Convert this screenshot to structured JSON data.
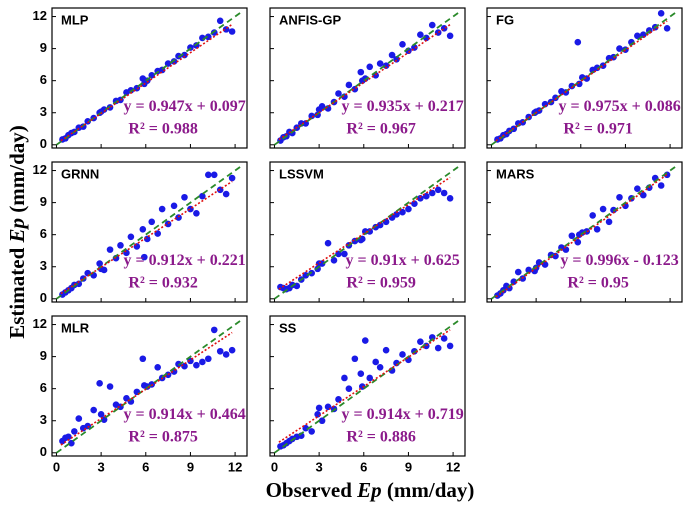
{
  "y_label": [
    "Estimated ",
    "Ep",
    " (mm/day)"
  ],
  "x_label": [
    "Observed ",
    "Ep",
    " (mm/day)"
  ],
  "chart_data": [
    {
      "type": "scatter",
      "title": "MLP",
      "equation": "y = 0.947x + 0.097",
      "r2": "R² = 0.988",
      "x": [
        0.4,
        0.6,
        0.8,
        1.0,
        1.2,
        1.5,
        1.8,
        2.1,
        2.5,
        2.9,
        3.2,
        3.6,
        4.0,
        4.3,
        4.7,
        5.0,
        5.4,
        5.8,
        6.1,
        6.4,
        6.8,
        7.1,
        7.5,
        7.9,
        8.2,
        8.6,
        9.0,
        9.4,
        9.8,
        10.2,
        10.6,
        11.0,
        11.4,
        11.8,
        5.9,
        3.0
      ],
      "values": [
        0.5,
        0.6,
        0.9,
        1.1,
        1.2,
        1.6,
        1.7,
        2.2,
        2.5,
        3.0,
        3.3,
        3.5,
        4.1,
        4.2,
        4.9,
        5.1,
        5.3,
        6.2,
        6.0,
        6.5,
        6.9,
        7.0,
        7.6,
        7.8,
        8.3,
        8.4,
        9.1,
        9.3,
        10.0,
        10.1,
        10.5,
        11.6,
        10.8,
        10.6,
        5.7,
        3.1
      ],
      "fit": {
        "x": [
          0.3,
          11.8
        ],
        "values": [
          0.381,
          11.27
        ]
      },
      "diagonal": {
        "x": [
          0,
          12.5
        ],
        "values": [
          0,
          12.5
        ]
      },
      "xlim": [
        -0.3,
        12.8
      ],
      "ylim": [
        -0.3,
        12.8
      ],
      "xticks": [
        0,
        3,
        6,
        9,
        12
      ],
      "yticks": [
        0,
        3,
        6,
        9,
        12
      ],
      "show_xtick_labels": false,
      "show_ytick_labels": true,
      "color": "#1a1ae6",
      "fit_color": "#e01010",
      "diagonal_color": "#2a8a2a",
      "label_color": "#8b1a8b"
    },
    {
      "type": "scatter",
      "title": "ANFIS-GP",
      "equation": "y = 0.935x + 0.217",
      "r2": "R² = 0.967",
      "x": [
        0.4,
        0.6,
        0.8,
        1.0,
        1.2,
        1.5,
        1.8,
        2.1,
        2.5,
        2.9,
        3.2,
        3.6,
        4.0,
        4.3,
        4.7,
        5.0,
        5.4,
        5.8,
        6.1,
        6.4,
        6.8,
        7.1,
        7.5,
        7.9,
        8.2,
        8.6,
        9.0,
        9.4,
        9.8,
        10.2,
        10.6,
        11.0,
        11.4,
        11.8,
        5.9,
        3.0
      ],
      "values": [
        0.4,
        0.7,
        0.8,
        1.2,
        1.1,
        1.6,
        2.0,
        2.0,
        2.7,
        2.8,
        3.6,
        3.4,
        4.0,
        4.8,
        4.5,
        5.6,
        5.2,
        6.8,
        6.2,
        7.3,
        6.5,
        7.6,
        7.4,
        8.4,
        8.0,
        9.4,
        8.8,
        9.1,
        10.3,
        10.0,
        11.2,
        10.5,
        10.9,
        10.2,
        6.0,
        3.3
      ],
      "fit": {
        "x": [
          0.3,
          11.8
        ],
        "values": [
          0.497,
          11.25
        ]
      },
      "diagonal": {
        "x": [
          0,
          12.5
        ],
        "values": [
          0,
          12.5
        ]
      },
      "xlim": [
        -0.3,
        12.8
      ],
      "ylim": [
        -0.3,
        12.8
      ],
      "xticks": [
        0,
        3,
        6,
        9,
        12
      ],
      "yticks": [
        0,
        3,
        6,
        9,
        12
      ],
      "show_xtick_labels": false,
      "show_ytick_labels": false,
      "color": "#1a1ae6",
      "fit_color": "#e01010",
      "diagonal_color": "#2a8a2a",
      "label_color": "#8b1a8b"
    },
    {
      "type": "scatter",
      "title": "FG",
      "equation": "y = 0.975x + 0.086",
      "r2": "R² = 0.971",
      "x": [
        0.4,
        0.6,
        0.8,
        1.0,
        1.2,
        1.5,
        1.8,
        2.1,
        2.5,
        2.9,
        3.2,
        3.6,
        4.0,
        4.3,
        4.7,
        5.0,
        5.4,
        5.8,
        6.1,
        6.4,
        6.8,
        7.1,
        7.5,
        7.9,
        8.2,
        8.6,
        9.0,
        9.4,
        9.8,
        10.2,
        10.6,
        11.0,
        11.4,
        11.8,
        5.9,
        3.0
      ],
      "values": [
        0.5,
        0.6,
        0.9,
        1.0,
        1.3,
        1.5,
        2.0,
        2.1,
        2.6,
        3.0,
        3.2,
        3.8,
        4.0,
        4.4,
        5.0,
        4.9,
        5.5,
        9.6,
        6.3,
        6.2,
        7.0,
        7.2,
        7.4,
        8.1,
        8.2,
        9.0,
        8.9,
        9.6,
        10.2,
        10.3,
        10.7,
        11.0,
        12.3,
        10.9,
        5.7,
        3.1
      ],
      "fit": {
        "x": [
          0.3,
          11.8
        ],
        "values": [
          0.379,
          11.59
        ]
      },
      "diagonal": {
        "x": [
          0,
          12.5
        ],
        "values": [
          0,
          12.5
        ]
      },
      "xlim": [
        -0.3,
        12.8
      ],
      "ylim": [
        -0.3,
        12.8
      ],
      "xticks": [
        0,
        3,
        6,
        9,
        12
      ],
      "yticks": [
        0,
        3,
        6,
        9,
        12
      ],
      "show_xtick_labels": false,
      "show_ytick_labels": false,
      "color": "#1a1ae6",
      "fit_color": "#e01010",
      "diagonal_color": "#2a8a2a",
      "label_color": "#8b1a8b"
    },
    {
      "type": "scatter",
      "title": "GRNN",
      "equation": "y = 0.912x + 0.221",
      "r2": "R² = 0.932",
      "x": [
        0.4,
        0.6,
        0.8,
        1.0,
        1.2,
        1.5,
        1.8,
        2.1,
        2.5,
        2.9,
        3.2,
        3.6,
        4.0,
        4.3,
        4.7,
        5.0,
        5.4,
        5.8,
        6.1,
        6.4,
        6.8,
        7.1,
        7.5,
        7.9,
        8.2,
        8.6,
        9.0,
        9.4,
        9.8,
        10.2,
        10.6,
        11.0,
        11.4,
        11.8,
        5.9,
        3.0
      ],
      "values": [
        0.4,
        0.6,
        0.8,
        1.0,
        1.3,
        1.4,
        1.9,
        2.4,
        2.2,
        3.3,
        2.7,
        4.6,
        3.8,
        5.0,
        4.3,
        5.8,
        4.9,
        6.5,
        5.6,
        7.2,
        6.1,
        8.4,
        7.0,
        8.7,
        7.6,
        9.5,
        8.4,
        8.0,
        9.6,
        11.6,
        11.6,
        10.2,
        9.8,
        11.3,
        3.9,
        2.8
      ],
      "fit": {
        "x": [
          0.3,
          11.8
        ],
        "values": [
          0.495,
          10.98
        ]
      },
      "diagonal": {
        "x": [
          0,
          12.5
        ],
        "values": [
          0,
          12.5
        ]
      },
      "xlim": [
        -0.3,
        12.8
      ],
      "ylim": [
        -0.3,
        12.8
      ],
      "xticks": [
        0,
        3,
        6,
        9,
        12
      ],
      "yticks": [
        0,
        3,
        6,
        9,
        12
      ],
      "show_xtick_labels": false,
      "show_ytick_labels": true,
      "color": "#1a1ae6",
      "fit_color": "#e01010",
      "diagonal_color": "#2a8a2a",
      "label_color": "#8b1a8b"
    },
    {
      "type": "scatter",
      "title": "LSSVM",
      "equation": "y = 0.91x + 0.625",
      "r2": "R² = 0.959",
      "x": [
        0.4,
        0.6,
        0.8,
        1.0,
        1.2,
        1.5,
        1.8,
        2.1,
        2.5,
        2.9,
        3.2,
        3.6,
        4.0,
        4.3,
        4.7,
        5.0,
        5.4,
        5.8,
        6.1,
        6.4,
        6.8,
        7.1,
        7.5,
        7.9,
        8.2,
        8.6,
        9.0,
        9.4,
        9.8,
        10.2,
        10.6,
        11.0,
        11.4,
        11.8,
        5.9,
        3.0
      ],
      "values": [
        1.1,
        1.0,
        0.9,
        1.0,
        1.3,
        1.2,
        1.8,
        2.2,
        2.4,
        2.8,
        3.3,
        5.2,
        3.6,
        4.2,
        4.2,
        5.0,
        5.4,
        5.5,
        6.3,
        6.3,
        6.7,
        6.9,
        7.2,
        7.6,
        7.9,
        8.1,
        8.4,
        8.9,
        9.4,
        9.6,
        9.9,
        10.2,
        9.9,
        9.4,
        5.6,
        3.3
      ],
      "fit": {
        "x": [
          0.3,
          11.8
        ],
        "values": [
          0.898,
          11.36
        ]
      },
      "diagonal": {
        "x": [
          0,
          12.5
        ],
        "values": [
          0,
          12.5
        ]
      },
      "xlim": [
        -0.3,
        12.8
      ],
      "ylim": [
        -0.3,
        12.8
      ],
      "xticks": [
        0,
        3,
        6,
        9,
        12
      ],
      "yticks": [
        0,
        3,
        6,
        9,
        12
      ],
      "show_xtick_labels": false,
      "show_ytick_labels": false,
      "color": "#1a1ae6",
      "fit_color": "#e01010",
      "diagonal_color": "#2a8a2a",
      "label_color": "#8b1a8b"
    },
    {
      "type": "scatter",
      "title": "MARS",
      "equation": "y = 0.996x - 0.123",
      "r2": "R² = 0.95",
      "x": [
        0.4,
        0.6,
        0.8,
        1.0,
        1.2,
        1.5,
        1.8,
        2.1,
        2.5,
        2.9,
        3.2,
        3.6,
        4.0,
        4.3,
        4.7,
        5.0,
        5.4,
        5.8,
        6.1,
        6.4,
        6.8,
        7.1,
        7.5,
        7.9,
        8.2,
        8.6,
        9.0,
        9.4,
        9.8,
        10.2,
        10.6,
        11.0,
        11.4,
        11.8,
        5.9,
        3.0
      ],
      "values": [
        0.3,
        0.5,
        0.8,
        1.2,
        1.0,
        1.6,
        2.5,
        1.9,
        2.7,
        2.6,
        3.4,
        3.2,
        4.1,
        4.0,
        4.8,
        4.6,
        5.9,
        5.3,
        6.2,
        6.3,
        7.8,
        6.5,
        8.4,
        7.2,
        8.3,
        9.5,
        8.7,
        9.4,
        10.3,
        9.7,
        10.4,
        11.3,
        10.6,
        11.6,
        6.0,
        2.9
      ],
      "fit": {
        "x": [
          0.3,
          11.8
        ],
        "values": [
          0.176,
          11.63
        ]
      },
      "diagonal": {
        "x": [
          0,
          12.5
        ],
        "values": [
          0,
          12.5
        ]
      },
      "xlim": [
        -0.3,
        12.8
      ],
      "ylim": [
        -0.3,
        12.8
      ],
      "xticks": [
        0,
        3,
        6,
        9,
        12
      ],
      "yticks": [
        0,
        3,
        6,
        9,
        12
      ],
      "show_xtick_labels": false,
      "show_ytick_labels": false,
      "color": "#1a1ae6",
      "fit_color": "#e01010",
      "diagonal_color": "#2a8a2a",
      "label_color": "#8b1a8b"
    },
    {
      "type": "scatter",
      "title": "MLR",
      "equation": "y = 0.914x + 0.464",
      "r2": "R² = 0.875",
      "x": [
        0.4,
        0.6,
        0.8,
        1.0,
        1.2,
        1.5,
        1.8,
        2.1,
        2.5,
        2.9,
        3.2,
        3.6,
        4.0,
        4.3,
        4.7,
        5.0,
        5.4,
        5.8,
        6.1,
        6.4,
        6.8,
        7.1,
        7.5,
        7.9,
        8.2,
        8.6,
        9.0,
        9.4,
        9.8,
        10.2,
        10.6,
        11.0,
        11.4,
        11.8,
        5.9,
        3.0
      ],
      "values": [
        1.1,
        1.4,
        1.5,
        0.9,
        2.0,
        3.2,
        2.3,
        2.5,
        4.0,
        6.5,
        3.1,
        6.2,
        4.5,
        4.3,
        5.1,
        4.8,
        5.7,
        8.8,
        6.2,
        6.4,
        8.0,
        7.0,
        7.3,
        7.6,
        8.3,
        8.1,
        8.6,
        8.2,
        8.5,
        8.8,
        11.5,
        9.5,
        9.2,
        9.6,
        6.3,
        3.6
      ],
      "fit": {
        "x": [
          0.3,
          11.8
        ],
        "values": [
          0.738,
          11.25
        ]
      },
      "diagonal": {
        "x": [
          0,
          12.5
        ],
        "values": [
          0,
          12.5
        ]
      },
      "xlim": [
        -0.3,
        12.8
      ],
      "ylim": [
        -0.3,
        12.8
      ],
      "xticks": [
        0,
        3,
        6,
        9,
        12
      ],
      "yticks": [
        0,
        3,
        6,
        9,
        12
      ],
      "show_xtick_labels": true,
      "show_ytick_labels": true,
      "color": "#1a1ae6",
      "fit_color": "#e01010",
      "diagonal_color": "#2a8a2a",
      "label_color": "#8b1a8b"
    },
    {
      "type": "scatter",
      "title": "SS",
      "equation": "y = 0.914x + 0.719",
      "r2": "R² = 0.886",
      "x": [
        0.4,
        0.6,
        0.8,
        1.0,
        1.2,
        1.5,
        1.8,
        2.1,
        2.5,
        2.9,
        3.2,
        3.6,
        4.0,
        4.3,
        4.7,
        5.0,
        5.4,
        5.8,
        6.1,
        6.4,
        6.8,
        7.1,
        7.5,
        7.9,
        8.2,
        8.6,
        9.0,
        9.4,
        9.8,
        10.2,
        10.6,
        11.0,
        11.4,
        11.8,
        5.9,
        3.0
      ],
      "values": [
        0.6,
        0.7,
        0.9,
        1.1,
        1.3,
        1.5,
        1.6,
        2.3,
        2.0,
        3.6,
        3.0,
        4.3,
        4.1,
        5.0,
        7.0,
        6.0,
        8.8,
        7.4,
        10.5,
        7.0,
        8.5,
        8.0,
        9.6,
        7.7,
        8.4,
        9.2,
        8.7,
        9.5,
        10.4,
        10.0,
        10.8,
        9.8,
        10.7,
        10.0,
        6.2,
        4.2
      ],
      "fit": {
        "x": [
          0.3,
          11.8
        ],
        "values": [
          0.993,
          11.51
        ]
      },
      "diagonal": {
        "x": [
          0,
          12.5
        ],
        "values": [
          0,
          12.5
        ]
      },
      "xlim": [
        -0.3,
        12.8
      ],
      "ylim": [
        -0.3,
        12.8
      ],
      "xticks": [
        0,
        3,
        6,
        9,
        12
      ],
      "yticks": [
        0,
        3,
        6,
        9,
        12
      ],
      "show_xtick_labels": true,
      "show_ytick_labels": false,
      "color": "#1a1ae6",
      "fit_color": "#e01010",
      "diagonal_color": "#2a8a2a",
      "label_color": "#8b1a8b"
    }
  ]
}
